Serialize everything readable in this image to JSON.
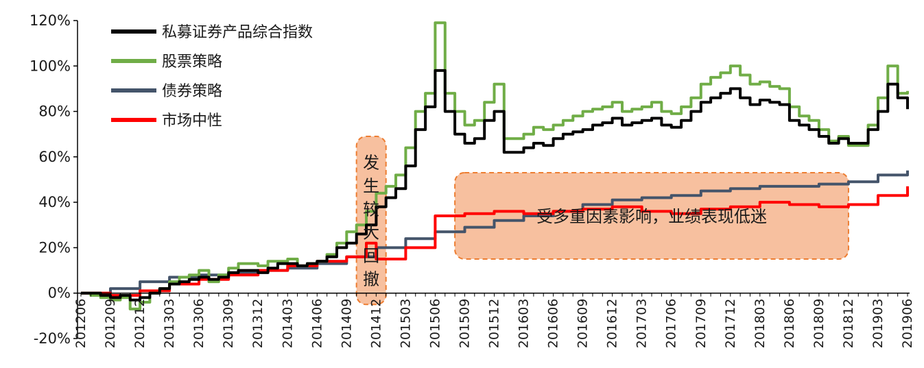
{
  "chart_data": {
    "type": "line",
    "title": "",
    "xlabel": "",
    "ylabel": "",
    "ylim": [
      -0.2,
      1.2
    ],
    "yticks": [
      "-20%",
      "0%",
      "20%",
      "40%",
      "60%",
      "80%",
      "100%",
      "120%"
    ],
    "ytick_values": [
      -0.2,
      0,
      0.2,
      0.4,
      0.6,
      0.8,
      1.0,
      1.2
    ],
    "x_tick_labels": [
      "201206",
      "201209",
      "201212",
      "201303",
      "201306",
      "201309",
      "201312",
      "201403",
      "201406",
      "201409",
      "201412",
      "201503",
      "201506",
      "201509",
      "201512",
      "201603",
      "201606",
      "201609",
      "201612",
      "201703",
      "201706",
      "201709",
      "201712",
      "201803",
      "201806",
      "201809",
      "201812",
      "201903",
      "201906"
    ],
    "grid": false,
    "legend_position": "top-left",
    "series": [
      {
        "name": "私募证券产品综合指数",
        "color": "#000000",
        "points": [
          [
            "201206",
            0.0
          ],
          [
            "201207",
            0.0
          ],
          [
            "201208",
            -0.01
          ],
          [
            "201209",
            -0.02
          ],
          [
            "201210",
            -0.01
          ],
          [
            "201211",
            -0.03
          ],
          [
            "201212",
            -0.02
          ],
          [
            "201301",
            0.0
          ],
          [
            "201302",
            0.02
          ],
          [
            "201303",
            0.04
          ],
          [
            "201304",
            0.05
          ],
          [
            "201305",
            0.06
          ],
          [
            "201306",
            0.07
          ],
          [
            "201307",
            0.06
          ],
          [
            "201308",
            0.07
          ],
          [
            "201309",
            0.09
          ],
          [
            "201310",
            0.1
          ],
          [
            "201311",
            0.1
          ],
          [
            "201312",
            0.09
          ],
          [
            "201401",
            0.11
          ],
          [
            "201402",
            0.13
          ],
          [
            "201403",
            0.13
          ],
          [
            "201404",
            0.12
          ],
          [
            "201405",
            0.13
          ],
          [
            "201406",
            0.14
          ],
          [
            "201407",
            0.16
          ],
          [
            "201408",
            0.2
          ],
          [
            "201409",
            0.22
          ],
          [
            "201410",
            0.26
          ],
          [
            "201411",
            0.3
          ],
          [
            "201412",
            0.38
          ],
          [
            "201501",
            0.42
          ],
          [
            "201502",
            0.46
          ],
          [
            "201503",
            0.56
          ],
          [
            "201504",
            0.72
          ],
          [
            "201505",
            0.82
          ],
          [
            "201506",
            0.98
          ],
          [
            "201507",
            0.8
          ],
          [
            "201508",
            0.7
          ],
          [
            "201509",
            0.66
          ],
          [
            "201510",
            0.68
          ],
          [
            "201511",
            0.76
          ],
          [
            "201512",
            0.8
          ],
          [
            "201601",
            0.62
          ],
          [
            "201602",
            0.62
          ],
          [
            "201603",
            0.64
          ],
          [
            "201604",
            0.66
          ],
          [
            "201605",
            0.65
          ],
          [
            "201606",
            0.68
          ],
          [
            "201607",
            0.7
          ],
          [
            "201608",
            0.71
          ],
          [
            "201609",
            0.72
          ],
          [
            "201610",
            0.74
          ],
          [
            "201611",
            0.75
          ],
          [
            "201612",
            0.77
          ],
          [
            "201701",
            0.74
          ],
          [
            "201702",
            0.75
          ],
          [
            "201703",
            0.76
          ],
          [
            "201704",
            0.77
          ],
          [
            "201705",
            0.74
          ],
          [
            "201706",
            0.73
          ],
          [
            "201707",
            0.76
          ],
          [
            "201708",
            0.8
          ],
          [
            "201709",
            0.84
          ],
          [
            "201710",
            0.86
          ],
          [
            "201711",
            0.88
          ],
          [
            "201712",
            0.9
          ],
          [
            "201801",
            0.86
          ],
          [
            "201802",
            0.83
          ],
          [
            "201803",
            0.85
          ],
          [
            "201804",
            0.84
          ],
          [
            "201805",
            0.83
          ],
          [
            "201806",
            0.76
          ],
          [
            "201807",
            0.74
          ],
          [
            "201808",
            0.72
          ],
          [
            "201809",
            0.69
          ],
          [
            "201810",
            0.66
          ],
          [
            "201811",
            0.68
          ],
          [
            "201812",
            0.66
          ],
          [
            "201901",
            0.66
          ],
          [
            "201902",
            0.72
          ],
          [
            "201903",
            0.8
          ],
          [
            "201904",
            0.92
          ],
          [
            "201905",
            0.86
          ],
          [
            "201906",
            0.81
          ]
        ]
      },
      {
        "name": "股票策略",
        "color": "#70ad47",
        "points": [
          [
            "201206",
            0.0
          ],
          [
            "201207",
            -0.01
          ],
          [
            "201208",
            -0.02
          ],
          [
            "201209",
            -0.03
          ],
          [
            "201210",
            -0.02
          ],
          [
            "201211",
            -0.07
          ],
          [
            "201212",
            -0.04
          ],
          [
            "201301",
            0.0
          ],
          [
            "201302",
            0.02
          ],
          [
            "201303",
            0.05
          ],
          [
            "201304",
            0.07
          ],
          [
            "201305",
            0.08
          ],
          [
            "201306",
            0.1
          ],
          [
            "201307",
            0.05
          ],
          [
            "201308",
            0.08
          ],
          [
            "201309",
            0.11
          ],
          [
            "201310",
            0.13
          ],
          [
            "201311",
            0.13
          ],
          [
            "201312",
            0.12
          ],
          [
            "201401",
            0.14
          ],
          [
            "201402",
            0.14
          ],
          [
            "201403",
            0.15
          ],
          [
            "201404",
            0.12
          ],
          [
            "201405",
            0.13
          ],
          [
            "201406",
            0.14
          ],
          [
            "201407",
            0.17
          ],
          [
            "201408",
            0.22
          ],
          [
            "201409",
            0.27
          ],
          [
            "201410",
            0.3
          ],
          [
            "201411",
            0.36
          ],
          [
            "201412",
            0.44
          ],
          [
            "201501",
            0.47
          ],
          [
            "201502",
            0.52
          ],
          [
            "201503",
            0.64
          ],
          [
            "201504",
            0.8
          ],
          [
            "201505",
            0.88
          ],
          [
            "201506",
            1.19
          ],
          [
            "201507",
            0.88
          ],
          [
            "201508",
            0.8
          ],
          [
            "201509",
            0.74
          ],
          [
            "201510",
            0.76
          ],
          [
            "201511",
            0.84
          ],
          [
            "201512",
            0.92
          ],
          [
            "201601",
            0.68
          ],
          [
            "201602",
            0.68
          ],
          [
            "201603",
            0.7
          ],
          [
            "201604",
            0.73
          ],
          [
            "201605",
            0.72
          ],
          [
            "201606",
            0.74
          ],
          [
            "201607",
            0.76
          ],
          [
            "201608",
            0.78
          ],
          [
            "201609",
            0.8
          ],
          [
            "201610",
            0.81
          ],
          [
            "201611",
            0.82
          ],
          [
            "201612",
            0.84
          ],
          [
            "201701",
            0.8
          ],
          [
            "201702",
            0.81
          ],
          [
            "201703",
            0.82
          ],
          [
            "201704",
            0.84
          ],
          [
            "201705",
            0.8
          ],
          [
            "201706",
            0.79
          ],
          [
            "201707",
            0.82
          ],
          [
            "201708",
            0.86
          ],
          [
            "201709",
            0.92
          ],
          [
            "201710",
            0.95
          ],
          [
            "201711",
            0.97
          ],
          [
            "201712",
            1.0
          ],
          [
            "201801",
            0.96
          ],
          [
            "201802",
            0.92
          ],
          [
            "201803",
            0.93
          ],
          [
            "201804",
            0.91
          ],
          [
            "201805",
            0.9
          ],
          [
            "201806",
            0.82
          ],
          [
            "201807",
            0.78
          ],
          [
            "201808",
            0.76
          ],
          [
            "201809",
            0.72
          ],
          [
            "201810",
            0.67
          ],
          [
            "201811",
            0.69
          ],
          [
            "201812",
            0.65
          ],
          [
            "201901",
            0.65
          ],
          [
            "201902",
            0.74
          ],
          [
            "201903",
            0.86
          ],
          [
            "201904",
            1.0
          ],
          [
            "201905",
            0.88
          ],
          [
            "201906",
            0.89
          ]
        ]
      },
      {
        "name": "债券策略",
        "color": "#44546a",
        "points": [
          [
            "201206",
            0.0
          ],
          [
            "201209",
            0.02
          ],
          [
            "201212",
            0.05
          ],
          [
            "201303",
            0.07
          ],
          [
            "201306",
            0.08
          ],
          [
            "201309",
            0.09
          ],
          [
            "201312",
            0.1
          ],
          [
            "201403",
            0.11
          ],
          [
            "201406",
            0.13
          ],
          [
            "201409",
            0.16
          ],
          [
            "201412",
            0.2
          ],
          [
            "201503",
            0.24
          ],
          [
            "201506",
            0.27
          ],
          [
            "201509",
            0.29
          ],
          [
            "201512",
            0.32
          ],
          [
            "201603",
            0.34
          ],
          [
            "201606",
            0.36
          ],
          [
            "201609",
            0.39
          ],
          [
            "201612",
            0.41
          ],
          [
            "201703",
            0.42
          ],
          [
            "201706",
            0.43
          ],
          [
            "201709",
            0.45
          ],
          [
            "201712",
            0.46
          ],
          [
            "201803",
            0.47
          ],
          [
            "201806",
            0.47
          ],
          [
            "201809",
            0.48
          ],
          [
            "201812",
            0.49
          ],
          [
            "201903",
            0.52
          ],
          [
            "201906",
            0.54
          ]
        ]
      },
      {
        "name": "市场中性",
        "color": "#ff0000",
        "points": [
          [
            "201206",
            0.0
          ],
          [
            "201209",
            -0.01
          ],
          [
            "201212",
            0.01
          ],
          [
            "201303",
            0.04
          ],
          [
            "201306",
            0.06
          ],
          [
            "201309",
            0.08
          ],
          [
            "201312",
            0.1
          ],
          [
            "201403",
            0.12
          ],
          [
            "201406",
            0.14
          ],
          [
            "201409",
            0.16
          ],
          [
            "201411",
            0.22
          ],
          [
            "201412",
            0.15
          ],
          [
            "201503",
            0.2
          ],
          [
            "201506",
            0.34
          ],
          [
            "201509",
            0.35
          ],
          [
            "201512",
            0.36
          ],
          [
            "201603",
            0.35
          ],
          [
            "201606",
            0.36
          ],
          [
            "201609",
            0.37
          ],
          [
            "201612",
            0.38
          ],
          [
            "201703",
            0.36
          ],
          [
            "201706",
            0.35
          ],
          [
            "201709",
            0.37
          ],
          [
            "201712",
            0.38
          ],
          [
            "201803",
            0.4
          ],
          [
            "201806",
            0.39
          ],
          [
            "201809",
            0.38
          ],
          [
            "201812",
            0.39
          ],
          [
            "201903",
            0.43
          ],
          [
            "201906",
            0.47
          ]
        ]
      }
    ],
    "annotations": [
      {
        "text": "发生较大回撤",
        "orientation": "vertical",
        "from": "201410",
        "to": "201501",
        "y_from": -0.05,
        "y_to": 0.69
      },
      {
        "text": "受多重因素影响，业绩表现低迷",
        "orientation": "horizontal",
        "from": "201508",
        "to": "201812",
        "y_from": 0.15,
        "y_to": 0.53
      }
    ]
  }
}
